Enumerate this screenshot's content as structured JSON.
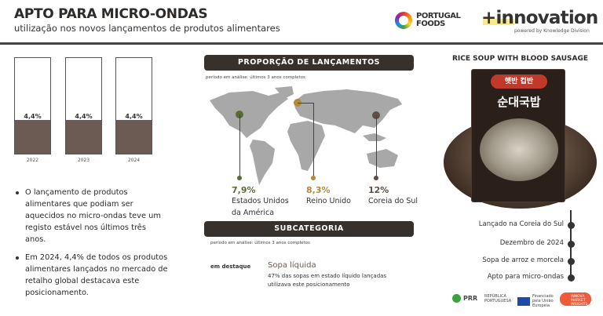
{
  "header": {
    "title": "APTO PARA MICRO-ONDAS",
    "subtitle": "utilização nos novos lançamentos de produtos alimentares",
    "logo_portugal_foods": [
      "PORTUGAL",
      "FOODS"
    ],
    "logo_innovation": "+innovation",
    "powered_by": "powered by Knowledge Division"
  },
  "chart_data": {
    "type": "bar",
    "categories": [
      "2022",
      "2023",
      "2024"
    ],
    "values": [
      4.4,
      4.4,
      4.4
    ],
    "labels": [
      "4,4%",
      "4,4%",
      "4,4%"
    ],
    "fill_color": "#6b5b52"
  },
  "bullets": [
    "O lançamento de produtos alimentares que podiam ser aquecidos no micro-ondas teve um registo estável nos últimos três anos.",
    "Em 2024, 4,4% de todos os produtos alimentares lançados no mercado de retalho global destacava este posicionamento."
  ],
  "proportion": {
    "title": "PROPORÇÃO DE LANÇAMENTOS",
    "period": "período em análise: últimos 3 anos completos",
    "countries": [
      {
        "pct": "7,9%",
        "name": "Estados Unidos da América",
        "color": "#5a6b35"
      },
      {
        "pct": "8,3%",
        "name": "Reino Unido",
        "color": "#b08a3e"
      },
      {
        "pct": "12%",
        "name": "Coreia do Sul",
        "color": "#5e4e48"
      }
    ]
  },
  "subcategory": {
    "title": "SUBCATEGORIA",
    "period": "período em análise: últimos 3 anos completos",
    "key": "em destaque",
    "name": "Sopa líquida",
    "desc": "47% das sopas em estado líquido lançadas utilizava este posicionamento"
  },
  "product": {
    "title": "RICE SOUP WITH BLOOD SAUSAGE",
    "pack_text": "순대국밥",
    "brand": "햇반 컵반",
    "timeline": [
      "Lançado na Coreia do Sul",
      "Dezembro de 2024",
      "Sopa de arroz e morcela",
      "Apto para micro-ondas"
    ]
  },
  "footer": {
    "prr": "PRR",
    "republica": "REPÚBLICA PORTUGUESA",
    "eu": "Financiado pela União Europeia",
    "innova": "INNOVA MARKET INSIGHTS"
  }
}
